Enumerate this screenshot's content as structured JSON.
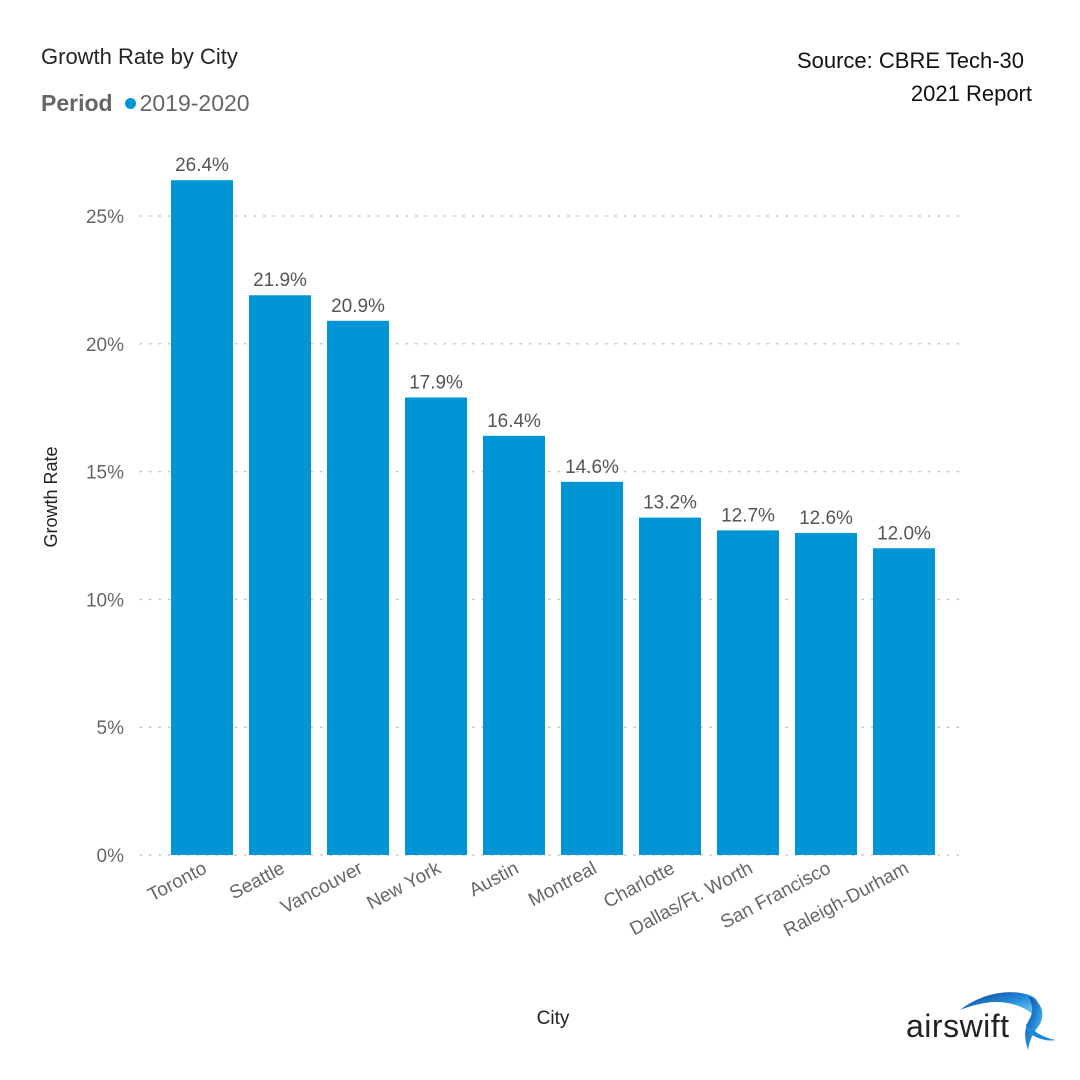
{
  "header": {
    "title": "Growth Rate by City",
    "legend_label": "Period",
    "legend_series": "2019-2020",
    "source_line1": "Source: CBRE Tech-30",
    "source_line2": "2021 Report"
  },
  "logo": {
    "text": "airswift",
    "icon": "swift-bird-icon"
  },
  "colors": {
    "bar": "#0095d5",
    "grid": "#c8c8c8",
    "tick_text": "#666666",
    "label_text": "#555555"
  },
  "chart_data": {
    "type": "bar",
    "title": "Growth Rate by City",
    "xlabel": "City",
    "ylabel": "Growth Rate",
    "ylim": [
      0,
      27
    ],
    "yticks": [
      0,
      5,
      10,
      15,
      20,
      25
    ],
    "ytick_labels": [
      "0%",
      "5%",
      "10%",
      "15%",
      "20%",
      "25%"
    ],
    "grid": true,
    "legend": {
      "title": "Period",
      "entries": [
        "2019-2020"
      ],
      "placement": "top-left"
    },
    "categories": [
      "Toronto",
      "Seattle",
      "Vancouver",
      "New York",
      "Austin",
      "Montreal",
      "Charlotte",
      "Dallas/Ft. Worth",
      "San Francisco",
      "Raleigh-Durham"
    ],
    "series": [
      {
        "name": "2019-2020",
        "values": [
          26.4,
          21.9,
          20.9,
          17.9,
          16.4,
          14.6,
          13.2,
          12.7,
          12.6,
          12.0
        ]
      }
    ],
    "data_labels": [
      "26.4%",
      "21.9%",
      "20.9%",
      "17.9%",
      "16.4%",
      "14.6%",
      "13.2%",
      "12.7%",
      "12.6%",
      "12.0%"
    ]
  }
}
